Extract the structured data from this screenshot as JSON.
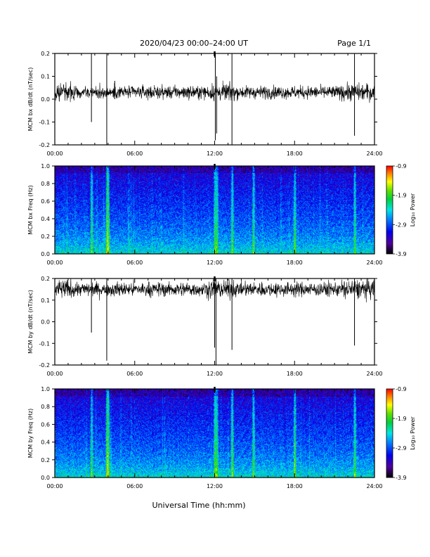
{
  "header": {
    "title": "2020/04/23  00:00–24:00 UT",
    "page": "Page 1/1"
  },
  "xlabel": "Universal Time (hh:mm)",
  "colors": {
    "trace": "#000000",
    "background": "#ffffff"
  },
  "chart_data": [
    {
      "type": "line",
      "ylabel": "MCM bx dB/dt (nT/sec)",
      "xlim": [
        0,
        24
      ],
      "ylim": [
        -0.2,
        0.2
      ],
      "x_ticks": [
        "00:00",
        "06:00",
        "12:00",
        "18:00",
        "24:00"
      ],
      "y_ticks": [
        "-0.2",
        "-0.1",
        "0.0",
        "0.1",
        "0.2"
      ],
      "baseline": 0.03,
      "noise_amplitude": 0.03,
      "spikes": [
        {
          "x": 2.75,
          "y_max": 0.2,
          "y_min": -0.1
        },
        {
          "x": 3.9,
          "y_max": 0.2,
          "y_min": -0.2
        },
        {
          "x": 4.5,
          "y_max": 0.08,
          "y_min": 0.0
        },
        {
          "x": 12.05,
          "y_max": 0.2,
          "y_min": -0.18
        },
        {
          "x": 12.15,
          "y_max": 0.1,
          "y_min": -0.15
        },
        {
          "x": 13.3,
          "y_max": 0.2,
          "y_min": -0.2
        },
        {
          "x": 22.5,
          "y_max": 0.2,
          "y_min": -0.16
        }
      ]
    },
    {
      "type": "heatmap",
      "ylabel": "MCM bx Freq (Hz)",
      "colorbar_label": "Log₁₀ Power",
      "colorbar_ticks": [
        "-0.9",
        "-1.9",
        "-2.9",
        "-3.9"
      ],
      "zlim": [
        -3.9,
        -0.9
      ],
      "xlim": [
        0,
        24
      ],
      "ylim": [
        0.0,
        1.0
      ],
      "x_ticks": [
        "00:00",
        "06:00",
        "12:00",
        "18:00",
        "24:00"
      ],
      "y_ticks": [
        "0.0",
        "0.2",
        "0.4",
        "0.6",
        "0.8",
        "1.0"
      ],
      "bright_times": [
        2.75,
        3.9,
        4.0,
        12.0,
        12.15,
        13.3,
        14.9,
        18.0,
        22.5
      ]
    },
    {
      "type": "line",
      "ylabel": "MCM by dB/dt (nT/sec)",
      "xlim": [
        0,
        24
      ],
      "ylim": [
        -0.2,
        0.2
      ],
      "x_ticks": [
        "00:00",
        "06:00",
        "12:00",
        "18:00",
        "24:00"
      ],
      "y_ticks": [
        "-0.2",
        "-0.1",
        "0.0",
        "0.1",
        "0.2"
      ],
      "baseline": 0.15,
      "noise_amplitude": 0.035,
      "spikes": [
        {
          "x": 2.75,
          "y_max": 0.2,
          "y_min": -0.05
        },
        {
          "x": 3.9,
          "y_max": 0.2,
          "y_min": -0.18
        },
        {
          "x": 12.0,
          "y_max": 0.2,
          "y_min": -0.12
        },
        {
          "x": 12.1,
          "y_max": 0.2,
          "y_min": -0.2
        },
        {
          "x": 13.3,
          "y_max": 0.2,
          "y_min": -0.13
        },
        {
          "x": 22.5,
          "y_max": 0.2,
          "y_min": -0.11
        }
      ]
    },
    {
      "type": "heatmap",
      "ylabel": "MCM by Freq (Hz)",
      "colorbar_label": "Log₁₀ Power",
      "colorbar_ticks": [
        "-0.9",
        "-1.9",
        "-2.9",
        "-3.9"
      ],
      "zlim": [
        -3.9,
        -0.9
      ],
      "xlim": [
        0,
        24
      ],
      "ylim": [
        0.0,
        1.0
      ],
      "x_ticks": [
        "00:00",
        "06:00",
        "12:00",
        "18:00",
        "24:00"
      ],
      "y_ticks": [
        "0.0",
        "0.2",
        "0.4",
        "0.6",
        "0.8",
        "1.0"
      ],
      "bright_times": [
        2.75,
        3.9,
        4.0,
        12.0,
        12.15,
        13.3,
        14.9,
        18.0,
        22.5
      ]
    }
  ]
}
